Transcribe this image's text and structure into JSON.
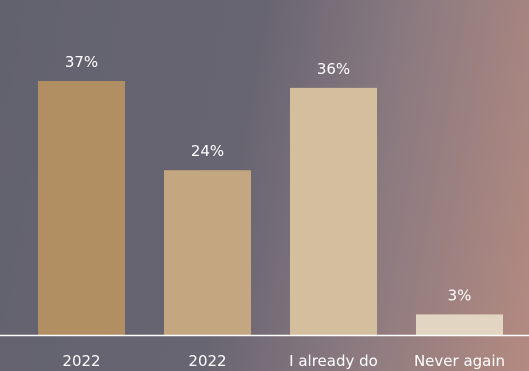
{
  "chart_data": {
    "type": "bar",
    "categories": [
      "2022",
      "2022",
      "I already do",
      "Never again"
    ],
    "values": [
      37,
      24,
      36,
      3
    ],
    "value_labels": [
      "37%",
      "24%",
      "36%",
      "3%"
    ],
    "ylim": [
      0,
      40
    ],
    "grid": false,
    "legend": "none"
  },
  "colors": {
    "bars": [
      "#b18f63",
      "#c4a680",
      "#d3bf9e",
      "#e2d5c1"
    ],
    "axis": "#ffffff",
    "text": "#ffffff"
  }
}
